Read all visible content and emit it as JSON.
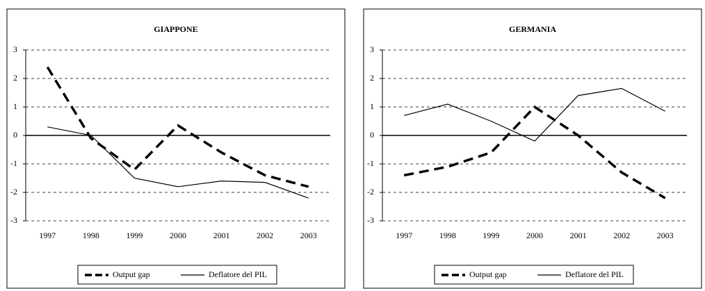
{
  "chart_data": [
    {
      "type": "line",
      "title": "GIAPPONE",
      "categories": [
        "1997",
        "1998",
        "1999",
        "2000",
        "2001",
        "2002",
        "2003"
      ],
      "series": [
        {
          "name": "Output gap",
          "color": "#000000",
          "values": [
            2.4,
            -0.1,
            -1.2,
            0.35,
            -0.6,
            -1.4,
            -1.8
          ]
        },
        {
          "name": "Deflatore del PIL",
          "color": "#000000",
          "values": [
            0.3,
            0,
            -1.5,
            -1.8,
            -1.6,
            -1.65,
            -2.2
          ]
        }
      ],
      "ylim": [
        -3,
        3
      ],
      "yticks": [
        -3,
        -2,
        -1,
        0,
        1,
        2,
        3
      ],
      "grid": true,
      "legend": "bottom"
    },
    {
      "type": "line",
      "title": "GERMANIA",
      "categories": [
        "1997",
        "1998",
        "1999",
        "2000",
        "2001",
        "2002",
        "2003"
      ],
      "series": [
        {
          "name": "Output gap",
          "color": "#000000",
          "values": [
            -1.4,
            -1.1,
            -0.6,
            1.0,
            0.0,
            -1.3,
            -2.2
          ]
        },
        {
          "name": "Deflatore del PIL",
          "color": "#000000",
          "values": [
            0.7,
            1.1,
            0.5,
            -0.2,
            1.4,
            1.65,
            0.85
          ]
        }
      ],
      "ylim": [
        -3,
        3
      ],
      "yticks": [
        -3,
        -2,
        -1,
        0,
        1,
        2,
        3
      ],
      "grid": true,
      "legend": "bottom"
    }
  ]
}
